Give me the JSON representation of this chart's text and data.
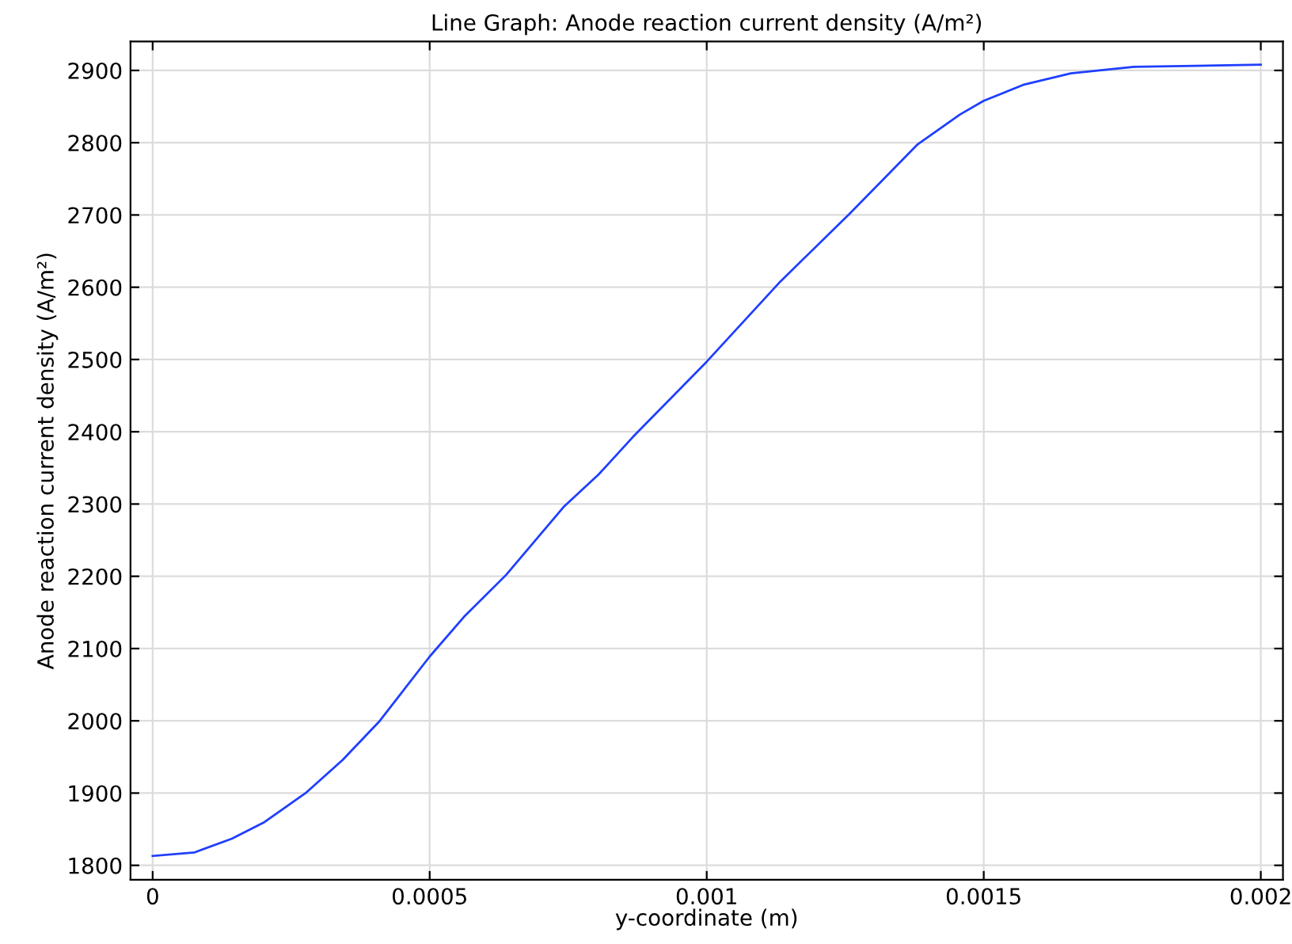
{
  "chart_data": {
    "type": "line",
    "title": "Line Graph: Anode reaction current density (A/m²)",
    "xlabel": "y-coordinate (m)",
    "ylabel": "Anode reaction current density (A/m²)",
    "series": [
      {
        "color": "#1f3fff",
        "x": [
          0,
          7.6e-05,
          0.000143,
          0.0002,
          0.000276,
          0.000343,
          0.00041,
          0.0005,
          0.000562,
          0.000638,
          0.000743,
          0.000805,
          0.000867,
          0.001,
          0.001133,
          0.001257,
          0.001381,
          0.001457,
          0.0015,
          0.001571,
          0.001657,
          0.001771,
          0.002
        ],
        "values": [
          1813,
          1818,
          1837,
          1859,
          1900,
          1946,
          2000,
          2089,
          2144,
          2202,
          2297,
          2341,
          2393,
          2497,
          2608,
          2701,
          2798,
          2839,
          2858,
          2880,
          2896,
          2905,
          2908
        ]
      }
    ],
    "xlim": [
      -4e-05,
      0.00204
    ],
    "ylim": [
      1780,
      2940
    ],
    "xticks": [
      0,
      0.0005,
      0.001,
      0.0015,
      0.002
    ],
    "yticks": [
      1800,
      1900,
      2000,
      2100,
      2200,
      2300,
      2400,
      2500,
      2600,
      2700,
      2800,
      2900
    ],
    "grid": true,
    "legend": false,
    "marker": "none",
    "line_style": "solid"
  }
}
